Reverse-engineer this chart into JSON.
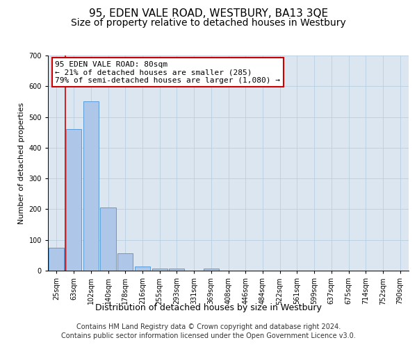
{
  "title": "95, EDEN VALE ROAD, WESTBURY, BA13 3QE",
  "subtitle": "Size of property relative to detached houses in Westbury",
  "xlabel": "Distribution of detached houses by size in Westbury",
  "ylabel": "Number of detached properties",
  "categories": [
    "25sqm",
    "63sqm",
    "102sqm",
    "140sqm",
    "178sqm",
    "216sqm",
    "255sqm",
    "293sqm",
    "331sqm",
    "369sqm",
    "408sqm",
    "446sqm",
    "484sqm",
    "522sqm",
    "561sqm",
    "599sqm",
    "637sqm",
    "675sqm",
    "714sqm",
    "752sqm",
    "790sqm"
  ],
  "values": [
    75,
    460,
    550,
    205,
    57,
    13,
    7,
    7,
    0,
    7,
    0,
    0,
    0,
    0,
    0,
    0,
    0,
    0,
    0,
    0,
    0
  ],
  "bar_color": "#aec6e8",
  "bar_edge_color": "#5b9bd5",
  "background_color": "#dce6f1",
  "red_line_x": 0.5,
  "annotation_text": "95 EDEN VALE ROAD: 80sqm\n← 21% of detached houses are smaller (285)\n79% of semi-detached houses are larger (1,080) →",
  "annotation_box_color": "#ffffff",
  "annotation_box_edge": "#cc0000",
  "ylim": [
    0,
    700
  ],
  "yticks": [
    0,
    100,
    200,
    300,
    400,
    500,
    600,
    700
  ],
  "footnote1": "Contains HM Land Registry data © Crown copyright and database right 2024.",
  "footnote2": "Contains public sector information licensed under the Open Government Licence v3.0.",
  "title_fontsize": 11,
  "subtitle_fontsize": 10,
  "xlabel_fontsize": 9,
  "ylabel_fontsize": 8,
  "tick_fontsize": 7,
  "annotation_fontsize": 8,
  "footnote_fontsize": 7
}
